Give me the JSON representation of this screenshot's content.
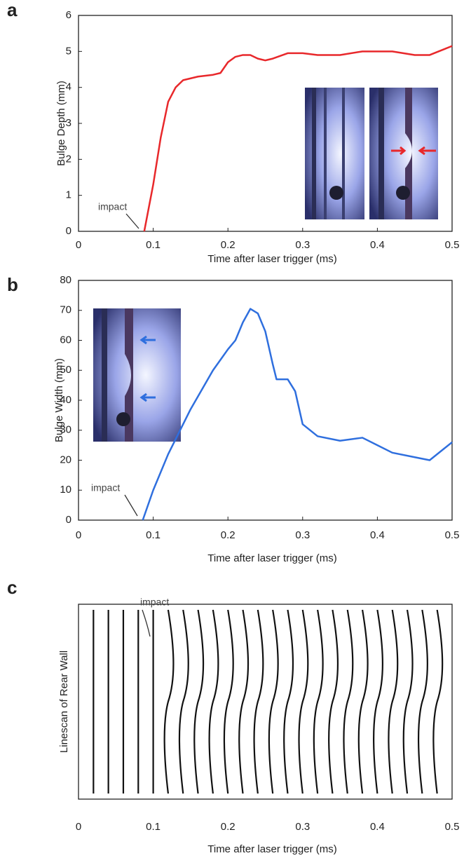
{
  "chart_data": [
    {
      "type": "line",
      "panel_label": "a",
      "y_label": "Bulge Depth (mm)",
      "x_label": "Time after laser trigger (ms)",
      "annotation": "impact",
      "x": [
        0.088,
        0.1,
        0.11,
        0.12,
        0.13,
        0.14,
        0.16,
        0.18,
        0.19,
        0.2,
        0.21,
        0.22,
        0.23,
        0.24,
        0.25,
        0.26,
        0.28,
        0.3,
        0.32,
        0.35,
        0.38,
        0.42,
        0.45,
        0.47,
        0.5
      ],
      "series": [
        {
          "color": "#e8282b",
          "values": [
            0,
            1.3,
            2.6,
            3.6,
            4.0,
            4.2,
            4.3,
            4.35,
            4.4,
            4.7,
            4.85,
            4.9,
            4.9,
            4.8,
            4.75,
            4.8,
            4.95,
            4.95,
            4.9,
            4.9,
            5.0,
            5.0,
            4.9,
            4.9,
            5.15
          ]
        }
      ],
      "xlim": [
        0,
        0.5
      ],
      "ylim": [
        0,
        6
      ],
      "xticks": [
        0,
        0.1,
        0.2,
        0.3,
        0.4,
        0.5
      ],
      "yticks": [
        0,
        1,
        2,
        3,
        4,
        5,
        6
      ]
    },
    {
      "type": "line",
      "panel_label": "b",
      "y_label": "Bulge Width (mm)",
      "x_label": "Time after laser trigger (ms)",
      "annotation": "impact",
      "x": [
        0.086,
        0.1,
        0.12,
        0.15,
        0.18,
        0.2,
        0.21,
        0.22,
        0.23,
        0.24,
        0.25,
        0.26,
        0.265,
        0.28,
        0.29,
        0.3,
        0.32,
        0.35,
        0.38,
        0.4,
        0.42,
        0.45,
        0.47,
        0.49,
        0.5
      ],
      "series": [
        {
          "color": "#2f6fde",
          "values": [
            0,
            10,
            22,
            37,
            50,
            57,
            60,
            66,
            70.5,
            69,
            63,
            52,
            47,
            47,
            43,
            32,
            28,
            26.5,
            27.5,
            25,
            22.5,
            21,
            20,
            24,
            26
          ]
        }
      ],
      "xlim": [
        0,
        0.5
      ],
      "ylim": [
        0,
        80
      ],
      "xticks": [
        0,
        0.1,
        0.2,
        0.3,
        0.4,
        0.5
      ],
      "yticks": [
        0,
        10,
        20,
        30,
        40,
        50,
        60,
        70,
        80
      ]
    },
    {
      "type": "linescan",
      "panel_label": "c",
      "y_label": "Linescan of Rear Wall",
      "x_label": "Time after laser trigger (ms)",
      "annotation": "impact",
      "x": [
        0.02,
        0.04,
        0.06,
        0.08,
        0.1,
        0.12,
        0.14,
        0.16,
        0.18,
        0.2,
        0.22,
        0.24,
        0.26,
        0.28,
        0.3,
        0.32,
        0.34,
        0.36,
        0.38,
        0.4,
        0.42,
        0.44,
        0.46,
        0.48
      ],
      "xlim": [
        0,
        0.5
      ],
      "xticks": [
        0,
        0.1,
        0.2,
        0.3,
        0.4,
        0.5
      ]
    }
  ]
}
